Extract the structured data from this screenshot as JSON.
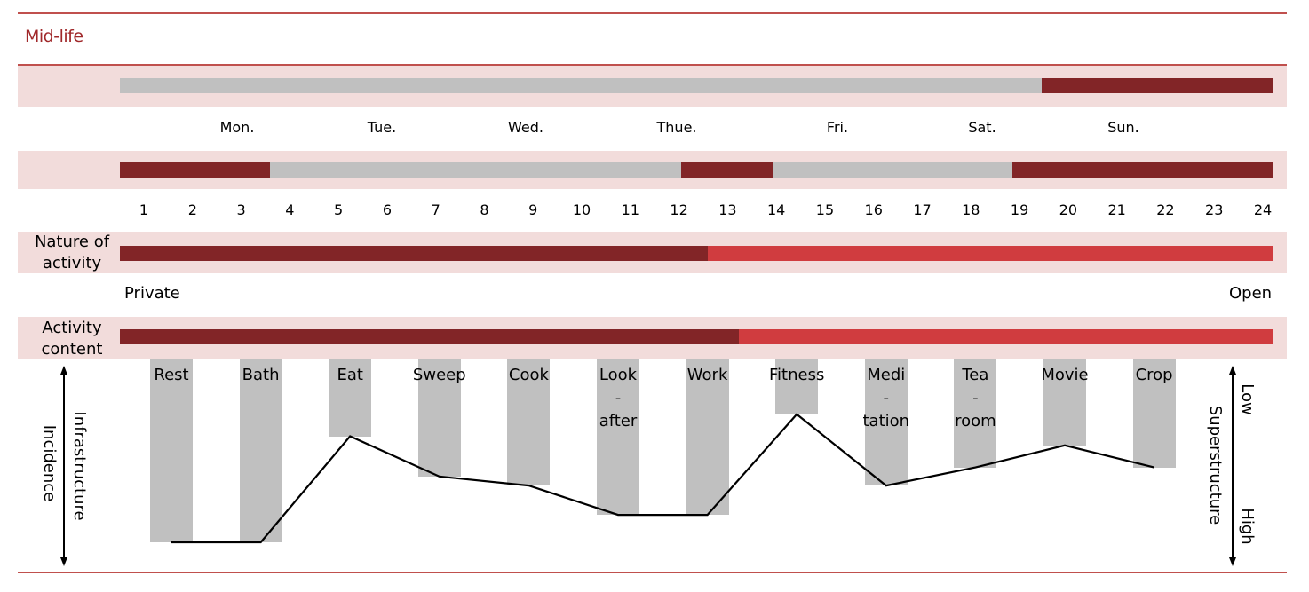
{
  "title": "Mid-life",
  "colors": {
    "band": "#f2dcdb",
    "dark_red": "#822527",
    "light_red": "#d03c3f",
    "gray": "#c0c0c0",
    "rule": "#c0504d"
  },
  "chart_data": {
    "type": "timeline",
    "days": [
      "Mon.",
      "Tue.",
      "Wed.",
      "Thue.",
      "Fri.",
      "Sat.",
      "Sun."
    ],
    "weekly_bar": [
      {
        "from": 0,
        "to": 0.8,
        "state": "gray"
      },
      {
        "from": 0.8,
        "to": 1,
        "state": "dark"
      }
    ],
    "hours": [
      "1",
      "2",
      "3",
      "4",
      "5",
      "6",
      "7",
      "8",
      "9",
      "10",
      "11",
      "12",
      "13",
      "14",
      "15",
      "16",
      "17",
      "18",
      "19",
      "20",
      "21",
      "22",
      "23",
      "24"
    ],
    "daily_bar": [
      {
        "from": 0,
        "to": 0.13,
        "state": "dark"
      },
      {
        "from": 0.13,
        "to": 0.487,
        "state": "gray"
      },
      {
        "from": 0.487,
        "to": 0.567,
        "state": "dark"
      },
      {
        "from": 0.567,
        "to": 0.774,
        "state": "gray"
      },
      {
        "from": 0.774,
        "to": 1,
        "state": "dark"
      }
    ],
    "nature_of_activity": {
      "label_line1": "Nature of",
      "label_line2": "activity",
      "start_label": "Private",
      "end_label": "Open",
      "dark_fraction": 0.51
    },
    "activity_content": {
      "label_line1": "Activity",
      "label_line2": "content",
      "dark_fraction": 0.537
    },
    "activities": [
      {
        "lines": [
          "Rest"
        ],
        "incidence": 1.0
      },
      {
        "lines": [
          "Bath"
        ],
        "incidence": 1.0
      },
      {
        "lines": [
          "Eat"
        ],
        "incidence": 0.42
      },
      {
        "lines": [
          "Sweep"
        ],
        "incidence": 0.64
      },
      {
        "lines": [
          "Cook"
        ],
        "incidence": 0.69
      },
      {
        "lines": [
          "Look",
          "-",
          "after"
        ],
        "incidence": 0.85
      },
      {
        "lines": [
          "Work"
        ],
        "incidence": 0.85
      },
      {
        "lines": [
          "Fitness"
        ],
        "incidence": 0.3
      },
      {
        "lines": [
          "Medi",
          "-",
          "tation"
        ],
        "incidence": 0.69
      },
      {
        "lines": [
          "Tea",
          "-",
          "room"
        ],
        "incidence": 0.59
      },
      {
        "lines": [
          "Movie"
        ],
        "incidence": 0.47
      },
      {
        "lines": [
          "Crop"
        ],
        "incidence": 0.59
      }
    ],
    "left_axis": {
      "line1": "Infrastructure",
      "line2": "Incidence"
    },
    "right_axis": {
      "label": "Superstructure",
      "low": "Low",
      "high": "High"
    }
  }
}
